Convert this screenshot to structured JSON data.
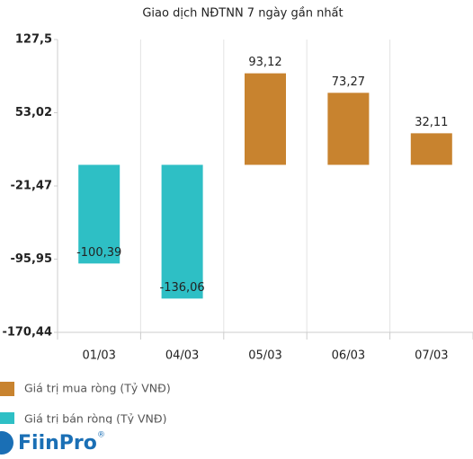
{
  "chart_data": {
    "type": "bar",
    "title": "Giao dịch NĐTNN 7 ngày gần nhất",
    "categories": [
      "01/03",
      "04/03",
      "05/03",
      "06/03",
      "07/03"
    ],
    "series": [
      {
        "name": "Giá trị mua ròng (Tỷ VNĐ)",
        "color": "#c8832f",
        "values": [
          null,
          null,
          93.12,
          73.27,
          32.11
        ],
        "value_labels": [
          null,
          null,
          "93,12",
          "73,27",
          "32,11"
        ]
      },
      {
        "name": "Giá trị bán ròng (Tỷ VNĐ)",
        "color": "#2ebfc5",
        "values": [
          -100.39,
          -136.06,
          null,
          null,
          null
        ],
        "value_labels": [
          "-100,39",
          "-136,06",
          null,
          null,
          null
        ]
      }
    ],
    "ylim": [
      -170.44,
      127.5
    ],
    "yticks": [
      {
        "value": 127.5,
        "label": "127,5"
      },
      {
        "value": 53.02,
        "label": "53,02"
      },
      {
        "value": -21.47,
        "label": "-21,47"
      },
      {
        "value": -95.95,
        "label": "-95,95"
      },
      {
        "value": -170.44,
        "label": "-170,44"
      }
    ]
  },
  "brand": "FiinPro",
  "brand_mark": "®"
}
